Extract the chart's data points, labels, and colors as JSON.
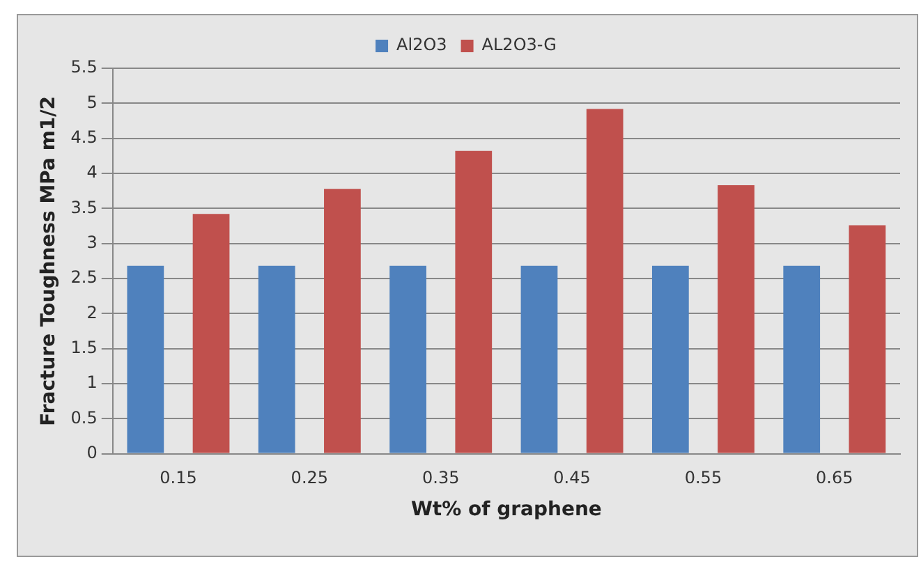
{
  "chart_data": {
    "type": "bar",
    "xlabel": "Wt% of graphene",
    "ylabel": "Fracture Toughness MPa m1/2",
    "categories": [
      "0.15",
      "0.25",
      "0.35",
      "0.45",
      "0.55",
      "0.65"
    ],
    "series": [
      {
        "name": "Al2O3",
        "color": "#4f81bd",
        "values": [
          2.68,
          2.68,
          2.68,
          2.68,
          2.68,
          2.68
        ]
      },
      {
        "name": "AL2O3-G",
        "color": "#c0504d",
        "values": [
          3.42,
          3.78,
          4.32,
          4.92,
          3.83,
          3.26
        ]
      }
    ],
    "ylim": [
      0,
      5.5
    ],
    "yticks": [
      0,
      0.5,
      1,
      1.5,
      2,
      2.5,
      3,
      3.5,
      4,
      4.5,
      5,
      5.5
    ],
    "grid": "y",
    "legend": "top"
  }
}
